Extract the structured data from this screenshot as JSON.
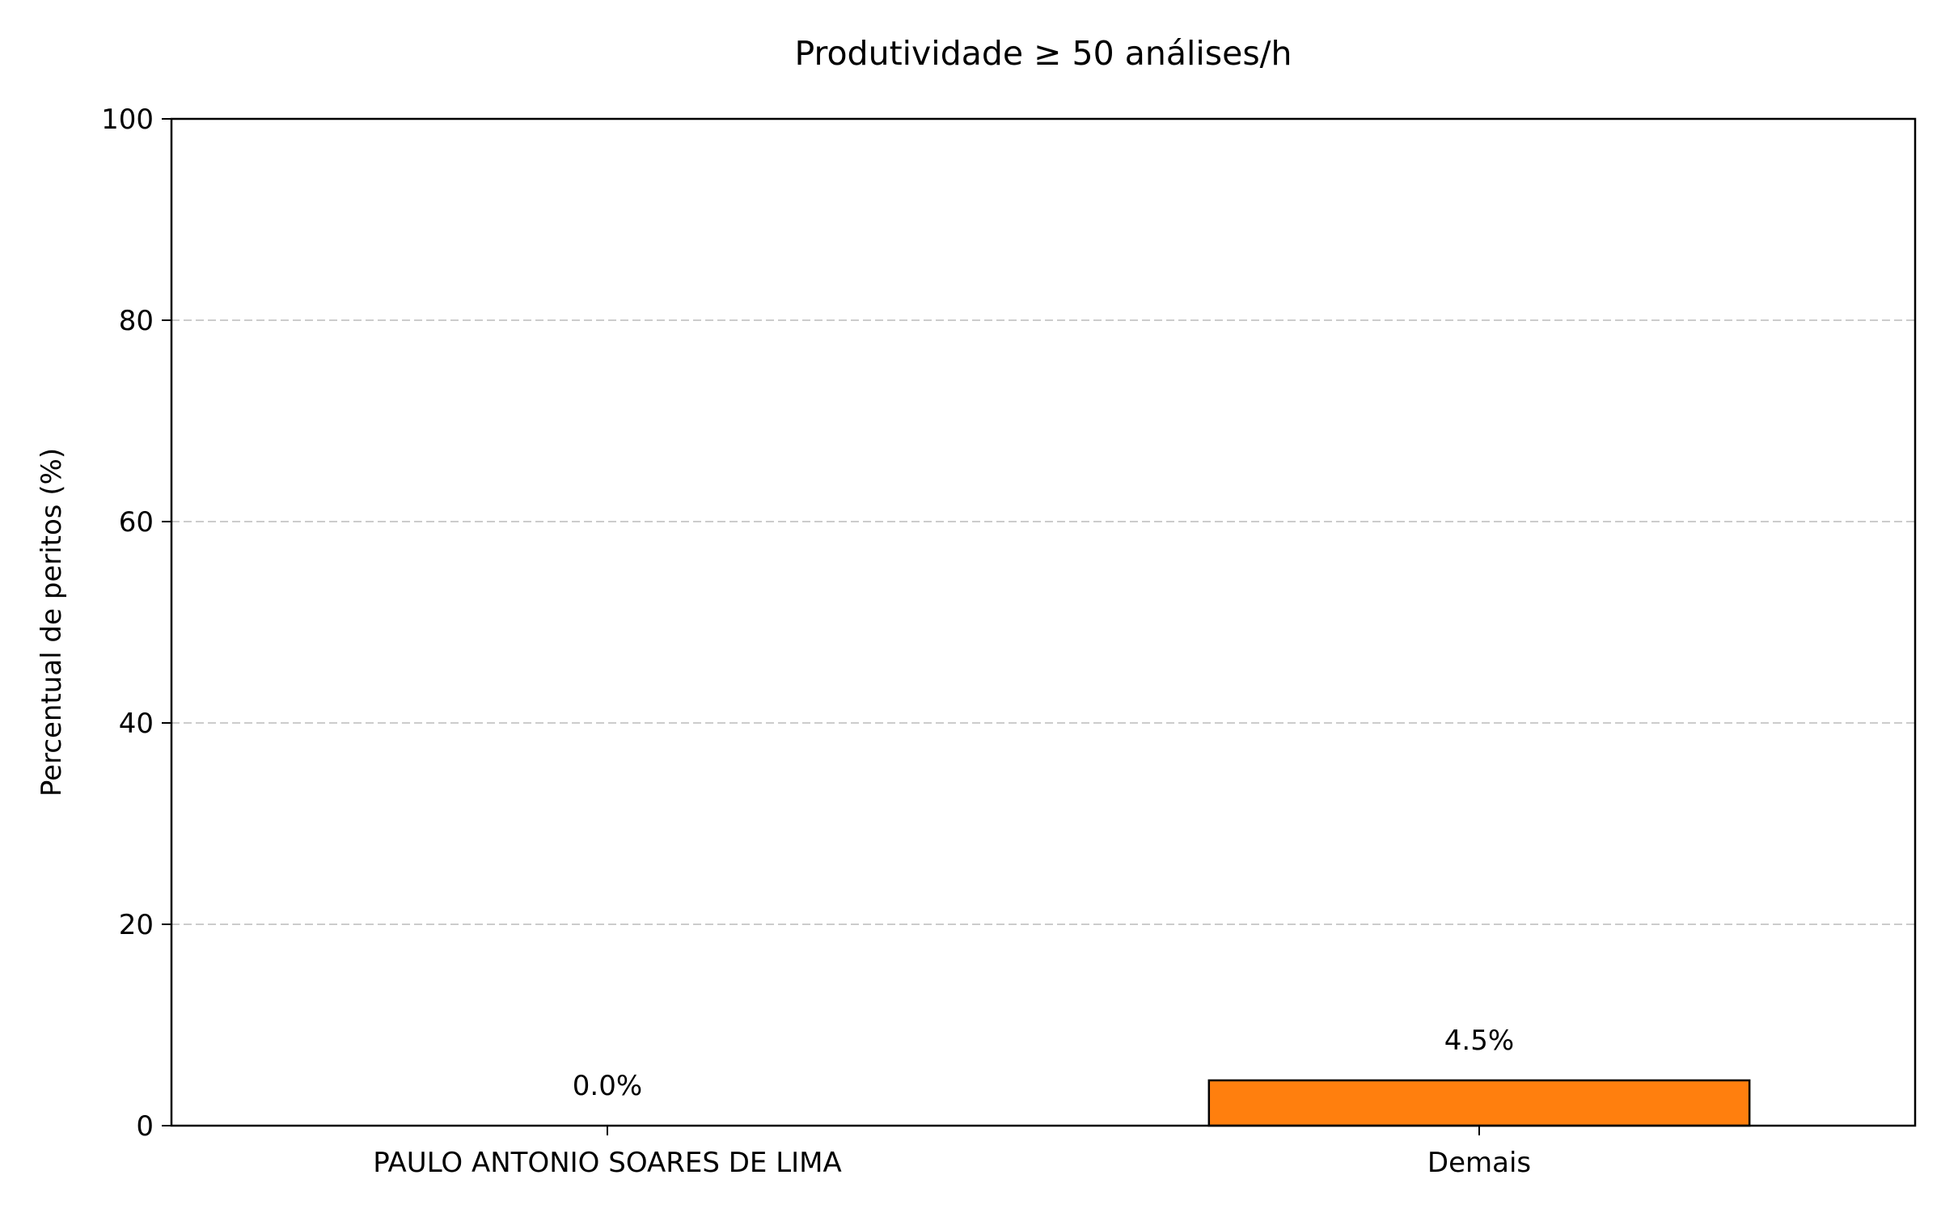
{
  "chart_data": {
    "type": "bar",
    "title": "Produtividade ≥ 50 análises/h",
    "xlabel": "",
    "ylabel": "Percentual de peritos (%)",
    "categories": [
      "PAULO ANTONIO SOARES DE LIMA",
      "Demais"
    ],
    "values": [
      0.0,
      4.5
    ],
    "value_labels": [
      "0.0%",
      "4.5%"
    ],
    "bar_colors": [
      "#1f77b4",
      "#ff7f0e"
    ],
    "ylim": [
      0,
      100
    ],
    "yticks": [
      0,
      20,
      40,
      60,
      80,
      100
    ],
    "ytick_labels": [
      "0",
      "20",
      "40",
      "60",
      "80",
      "100"
    ],
    "grid": "y-dashed"
  }
}
